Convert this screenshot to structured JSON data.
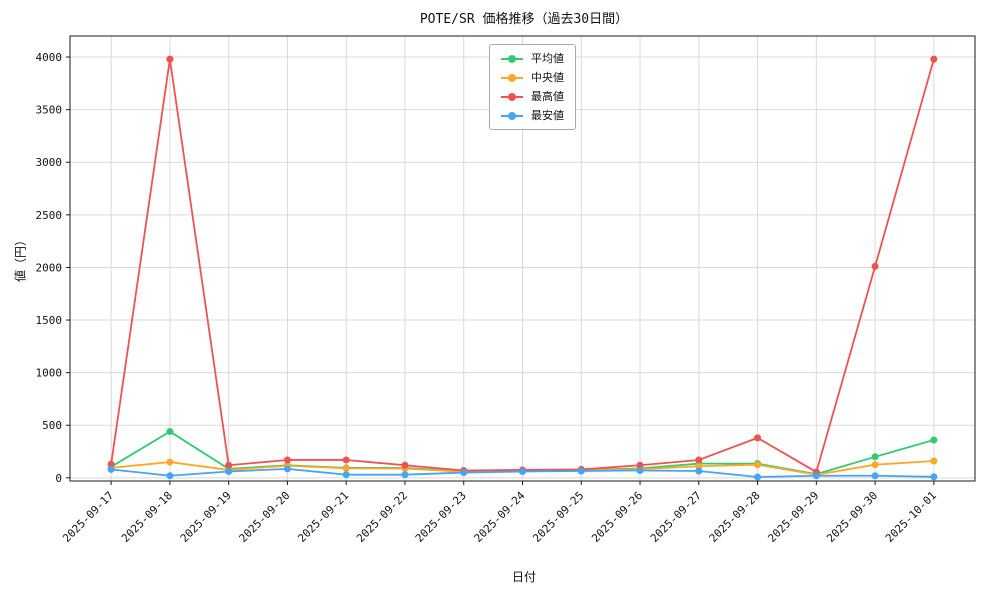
{
  "chart_data": {
    "type": "line",
    "title": "POTE/SR 価格推移（過去30日間）",
    "xlabel": "日付",
    "ylabel": "値（円）",
    "categories": [
      "2025-09-17",
      "2025-09-18",
      "2025-09-19",
      "2025-09-20",
      "2025-09-21",
      "2025-09-22",
      "2025-09-23",
      "2025-09-24",
      "2025-09-25",
      "2025-09-26",
      "2025-09-27",
      "2025-09-28",
      "2025-09-29",
      "2025-09-30",
      "2025-10-01"
    ],
    "series": [
      {
        "name": "平均値",
        "color": "#2ecc71",
        "values": [
          105,
          440,
          85,
          120,
          95,
          95,
          62,
          70,
          75,
          90,
          135,
          135,
          35,
          200,
          360
        ]
      },
      {
        "name": "中央値",
        "color": "#ffa726",
        "values": [
          95,
          150,
          75,
          115,
          90,
          88,
          58,
          68,
          72,
          82,
          110,
          125,
          30,
          125,
          160
        ]
      },
      {
        "name": "最高値",
        "color": "#ef5350",
        "values": [
          130,
          3980,
          120,
          170,
          170,
          120,
          70,
          75,
          80,
          120,
          170,
          380,
          55,
          2010,
          3980
        ]
      },
      {
        "name": "最安値",
        "color": "#42a5f5",
        "values": [
          80,
          20,
          60,
          85,
          30,
          30,
          50,
          60,
          65,
          70,
          65,
          8,
          20,
          20,
          10
        ]
      }
    ],
    "yticks": [
      0,
      500,
      1000,
      1500,
      2000,
      2500,
      3000,
      3500,
      4000
    ],
    "ylim": [
      -30,
      4200
    ],
    "grid": true,
    "grid_color": "#d9d9d9",
    "frame_color": "#1a1a1a",
    "legend_position": "upper center"
  }
}
